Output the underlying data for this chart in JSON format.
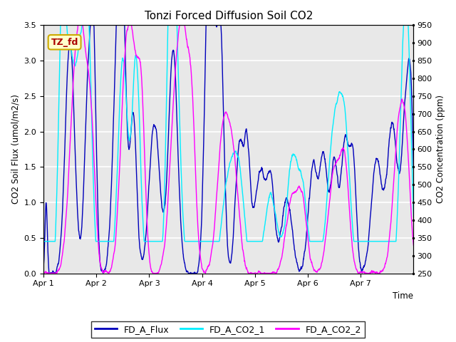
{
  "title": "Tonzi Forced Diffusion Soil CO2",
  "xlabel": "Time",
  "ylabel_left": "CO2 Soil Flux (umol/m2/s)",
  "ylabel_right": "CO2 Concentration (ppm)",
  "ylim_left": [
    0.0,
    3.5
  ],
  "ylim_right": [
    250,
    950
  ],
  "yticks_left": [
    0.0,
    0.5,
    1.0,
    1.5,
    2.0,
    2.5,
    3.0,
    3.5
  ],
  "yticks_right": [
    250,
    300,
    350,
    400,
    450,
    500,
    550,
    600,
    650,
    700,
    750,
    800,
    850,
    900,
    950
  ],
  "xtick_labels": [
    "Apr 1",
    "Apr 2",
    "Apr 3",
    "Apr 4",
    "Apr 5",
    "Apr 6",
    "Apr 7"
  ],
  "color_flux": "#0000BB",
  "color_co2_1": "#00EEFF",
  "color_co2_2": "#FF00FF",
  "legend_label_flux": "FD_A_Flux",
  "legend_label_co2_1": "FD_A_CO2_1",
  "legend_label_co2_2": "FD_A_CO2_2",
  "tag_label": "TZ_fd",
  "tag_facecolor": "#FFFFCC",
  "tag_edgecolor": "#CCAA00",
  "tag_textcolor": "#AA0000",
  "background_color": "#E8E8E8",
  "grid_color": "#FFFFFF",
  "n_points": 2000,
  "days": 7
}
